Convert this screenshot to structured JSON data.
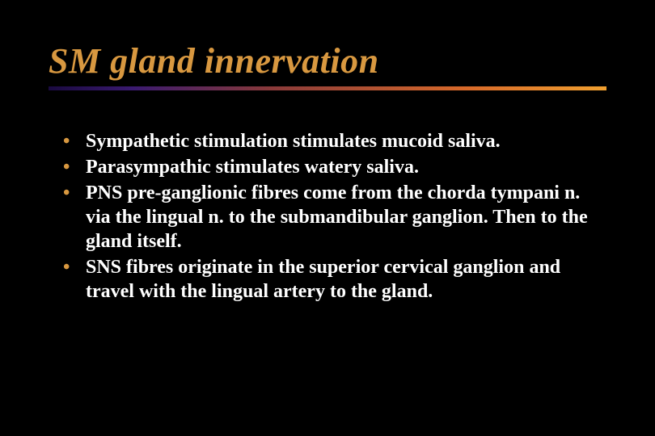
{
  "slide": {
    "title": "SM gland innervation",
    "title_color": "#d89840",
    "title_fontsize": 44,
    "title_italic": true,
    "title_bold": true,
    "underline_gradient": [
      "#1a0a40",
      "#3a1a70",
      "#8a3a3a",
      "#d86a2a",
      "#f0a030"
    ],
    "underline_width": 690,
    "underline_height": 5,
    "background_color": "#000000",
    "bullet_color": "#d89840",
    "body_text_color": "#ffffff",
    "body_fontsize": 24,
    "body_bold": true,
    "bullets": [
      "Sympathetic stimulation stimulates mucoid saliva.",
      "Parasympathic stimulates watery saliva.",
      "PNS pre-ganglionic fibres come from the chorda tympani n. via the lingual n. to the submandibular ganglion.  Then to the gland itself.",
      "SNS fibres originate in the superior cervical ganglion and travel with the lingual artery to the gland."
    ]
  }
}
